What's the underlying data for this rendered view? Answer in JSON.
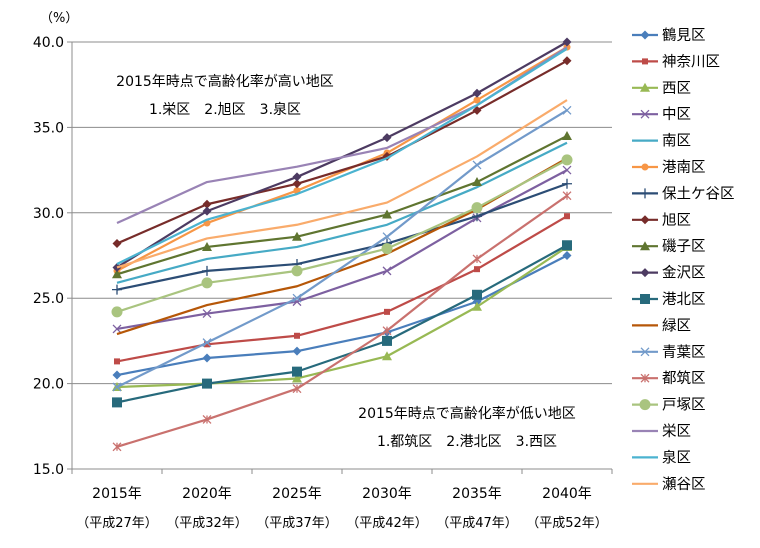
{
  "chart_data": {
    "type": "line",
    "unit_label": "（%）",
    "categories": [
      "2015年",
      "2020年",
      "2025年",
      "2030年",
      "2035年",
      "2040年"
    ],
    "sub_categories": [
      "（平成27年）",
      "（平成32年）",
      "（平成37年）",
      "（平成42年）",
      "（平成47年）",
      "（平成52年）"
    ],
    "ylim": [
      15,
      40
    ],
    "yticks": [
      "15.0",
      "20.0",
      "25.0",
      "30.0",
      "35.0",
      "40.0"
    ],
    "grid": true,
    "legend_position": "right",
    "annotations": [
      {
        "line1": "2015年時点で高齢化率が高い地区",
        "line2": "1.栄区　2.旭区　3.泉区"
      },
      {
        "line1": "2015年時点で高齢化率が低い地区",
        "line2": "1.都筑区　2.港北区　3.西区"
      }
    ],
    "series": [
      {
        "name": "鶴見区",
        "color": "#4a7ebb",
        "marker": "diamond",
        "values": [
          20.5,
          21.5,
          21.9,
          23.0,
          24.8,
          27.5
        ]
      },
      {
        "name": "神奈川区",
        "color": "#be4b48",
        "marker": "square",
        "values": [
          21.3,
          22.3,
          22.8,
          24.2,
          26.7,
          29.8
        ]
      },
      {
        "name": "西区",
        "color": "#98b954",
        "marker": "triangle",
        "values": [
          19.8,
          20.0,
          20.3,
          21.6,
          24.5,
          28.0
        ]
      },
      {
        "name": "中区",
        "color": "#7d60a0",
        "marker": "x",
        "values": [
          23.2,
          24.1,
          24.8,
          26.6,
          29.7,
          32.5
        ]
      },
      {
        "name": "南区",
        "color": "#46aac5",
        "marker": "none",
        "values": [
          25.9,
          27.3,
          28.0,
          29.3,
          31.5,
          34.1
        ]
      },
      {
        "name": "港南区",
        "color": "#f79646",
        "marker": "circle",
        "values": [
          26.6,
          29.4,
          31.3,
          33.5,
          36.6,
          39.7
        ]
      },
      {
        "name": "保土ケ谷区",
        "color": "#2c4d75",
        "marker": "plus",
        "values": [
          25.5,
          26.6,
          27.0,
          28.2,
          29.8,
          31.7
        ]
      },
      {
        "name": "旭区",
        "color": "#772c2a",
        "marker": "diamond",
        "values": [
          28.2,
          30.5,
          31.7,
          33.3,
          36.0,
          38.9
        ]
      },
      {
        "name": "磯子区",
        "color": "#5f7530",
        "marker": "triangle",
        "values": [
          26.4,
          28.0,
          28.6,
          29.9,
          31.8,
          34.5
        ]
      },
      {
        "name": "金沢区",
        "color": "#4d3b62",
        "marker": "diamond",
        "values": [
          26.8,
          30.1,
          32.1,
          34.4,
          37.0,
          40.0
        ]
      },
      {
        "name": "港北区",
        "color": "#276a7c",
        "marker": "bigsquare",
        "values": [
          18.9,
          20.0,
          20.7,
          22.5,
          25.2,
          28.1
        ]
      },
      {
        "name": "緑区",
        "color": "#b65708",
        "marker": "none",
        "values": [
          22.9,
          24.6,
          25.7,
          27.6,
          30.2,
          33.2
        ]
      },
      {
        "name": "青葉区",
        "color": "#729aca",
        "marker": "x",
        "values": [
          19.8,
          22.4,
          25.0,
          28.6,
          32.8,
          36.0
        ]
      },
      {
        "name": "都筑区",
        "color": "#c9716e",
        "marker": "star",
        "values": [
          16.3,
          17.9,
          19.7,
          23.1,
          27.3,
          31.0
        ]
      },
      {
        "name": "戸塚区",
        "color": "#a9c47f",
        "marker": "bigcircle",
        "values": [
          24.2,
          25.9,
          26.6,
          27.9,
          30.3,
          33.1
        ]
      },
      {
        "name": "栄区",
        "color": "#9983b5",
        "marker": "none",
        "values": [
          29.4,
          31.8,
          32.7,
          33.8,
          36.3,
          39.7
        ]
      },
      {
        "name": "泉区",
        "color": "#4bb3d0",
        "marker": "none",
        "values": [
          27.0,
          29.6,
          31.1,
          33.2,
          36.3,
          39.6
        ]
      },
      {
        "name": "瀬谷区",
        "color": "#f9ab6b",
        "marker": "none",
        "values": [
          26.8,
          28.5,
          29.3,
          30.6,
          33.3,
          36.6
        ]
      }
    ]
  }
}
